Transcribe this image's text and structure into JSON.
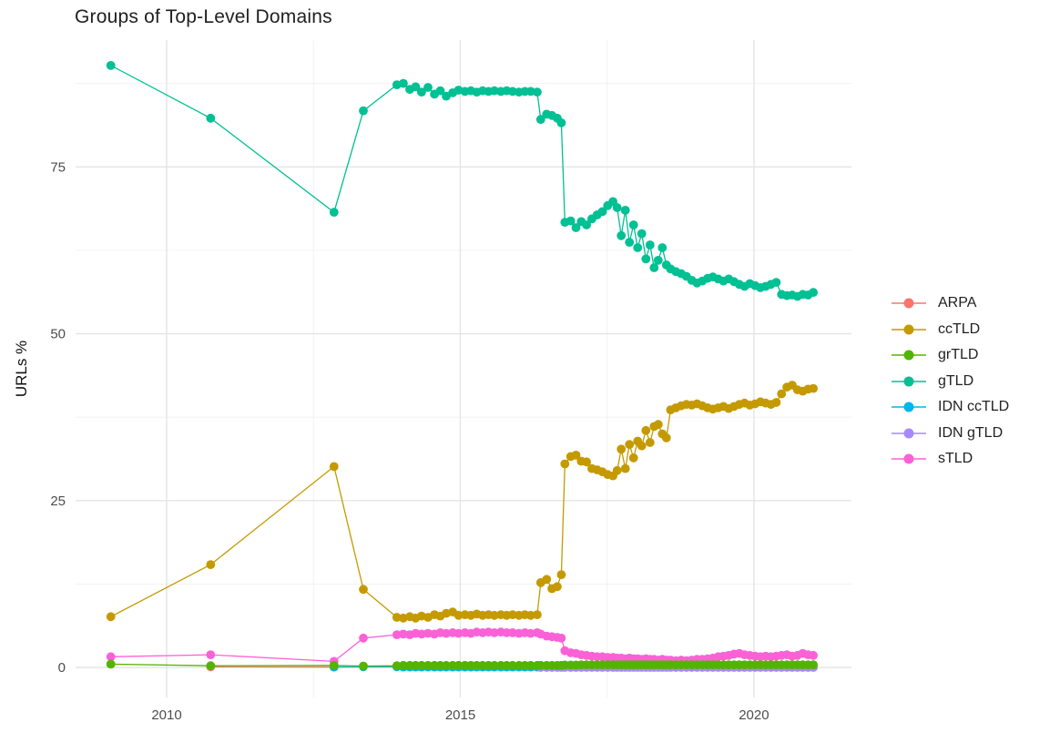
{
  "title": "Groups of Top-Level Domains",
  "y_axis": {
    "label": "URLs %",
    "tick_labels": [
      "0",
      "25",
      "50",
      "75"
    ],
    "tick_values": [
      0,
      25,
      50,
      75
    ],
    "minor_values": [
      12.5,
      37.5,
      62.5,
      87.5
    ]
  },
  "x_axis": {
    "label": "",
    "tick_labels": [
      "2010",
      "2015",
      "2020"
    ],
    "tick_values": [
      2010,
      2015,
      2020
    ],
    "minor_values": [
      2012.5,
      2017.5
    ]
  },
  "legend": {
    "position": "right",
    "items": [
      "ARPA",
      "ccTLD",
      "grTLD",
      "gTLD",
      "IDN ccTLD",
      "IDN gTLD",
      "sTLD"
    ]
  },
  "style_colors": {
    "grid_major": "#e4e4e4",
    "grid_minor": "#f0f0f0",
    "tick_text": "#4d4d4d",
    "title_text": "#1f1f1f",
    "background": "#ffffff"
  },
  "chart_data": {
    "type": "line",
    "title": "Groups of Top-Level Domains",
    "xlabel": "",
    "ylabel": "URLs %",
    "xlim": [
      2008.45,
      2021.66
    ],
    "ylim": [
      -4.5,
      94.0
    ],
    "grid": true,
    "legend_position": "right",
    "draw_order": [
      "ARPA",
      "IDN ccTLD",
      "IDN gTLD",
      "ccTLD",
      "sTLD",
      "gTLD",
      "grTLD"
    ],
    "x": [
      2009.05,
      2010.75,
      2012.85,
      2013.35,
      2013.92,
      2014.03,
      2014.14,
      2014.24,
      2014.34,
      2014.45,
      2014.56,
      2014.66,
      2014.76,
      2014.87,
      2014.97,
      2015.08,
      2015.18,
      2015.28,
      2015.38,
      2015.48,
      2015.58,
      2015.69,
      2015.79,
      2015.89,
      2016.0,
      2016.1,
      2016.2,
      2016.31,
      2016.37,
      2016.47,
      2016.56,
      2016.65,
      2016.72,
      2016.78,
      2016.88,
      2016.97,
      2017.06,
      2017.15,
      2017.24,
      2017.33,
      2017.42,
      2017.51,
      2017.6,
      2017.67,
      2017.74,
      2017.81,
      2017.88,
      2017.95,
      2018.02,
      2018.09,
      2018.16,
      2018.23,
      2018.3,
      2018.37,
      2018.44,
      2018.51,
      2018.58,
      2018.67,
      2018.76,
      2018.85,
      2018.94,
      2019.03,
      2019.12,
      2019.21,
      2019.3,
      2019.39,
      2019.48,
      2019.57,
      2019.66,
      2019.75,
      2019.84,
      2019.93,
      2020.02,
      2020.11,
      2020.2,
      2020.29,
      2020.38,
      2020.47,
      2020.56,
      2020.65,
      2020.74,
      2020.83,
      2020.92,
      2021.01
    ],
    "series": [
      {
        "name": "ARPA",
        "color": "#F8766D",
        "values": [
          null,
          0.1,
          0.05,
          null,
          null,
          null,
          null,
          null,
          null,
          null,
          null,
          null,
          null,
          null,
          null,
          null,
          null,
          null,
          null,
          null,
          null,
          null,
          null,
          null,
          null,
          null,
          null,
          null,
          null,
          null,
          null,
          null,
          null,
          null,
          null,
          null,
          null,
          null,
          null,
          null,
          null,
          null,
          null,
          null,
          null,
          null,
          null,
          null,
          null,
          null,
          null,
          null,
          null,
          null,
          null,
          null,
          null,
          null,
          null,
          null,
          null,
          null,
          null,
          null,
          null,
          null,
          null,
          null,
          null,
          null,
          null,
          null,
          null,
          null,
          null,
          null,
          null,
          null,
          null,
          null,
          null,
          null,
          null,
          null
        ]
      },
      {
        "name": "ccTLD",
        "color": "#C49A00",
        "values": [
          7.6,
          15.4,
          30.1,
          11.7,
          7.5,
          7.4,
          7.6,
          7.4,
          7.7,
          7.5,
          7.9,
          7.7,
          8.1,
          8.3,
          7.8,
          7.9,
          7.8,
          8.0,
          7.8,
          7.9,
          7.8,
          7.9,
          7.8,
          7.9,
          7.8,
          7.9,
          7.8,
          7.9,
          12.7,
          13.2,
          11.8,
          12.1,
          13.9,
          30.5,
          31.6,
          31.8,
          30.9,
          30.8,
          29.8,
          29.6,
          29.3,
          28.9,
          28.7,
          29.5,
          32.7,
          29.8,
          33.4,
          31.4,
          33.9,
          33.2,
          35.5,
          33.7,
          36.1,
          36.4,
          35.0,
          34.4,
          38.6,
          38.9,
          39.2,
          39.4,
          39.3,
          39.5,
          39.2,
          38.9,
          38.7,
          38.9,
          39.1,
          38.8,
          39.1,
          39.4,
          39.6,
          39.3,
          39.5,
          39.8,
          39.6,
          39.4,
          39.7,
          41.0,
          42.0,
          42.3,
          41.6,
          41.4,
          41.7,
          41.8
        ]
      },
      {
        "name": "grTLD",
        "color": "#53B400",
        "values": [
          0.5,
          0.25,
          0.3,
          0.2,
          0.25,
          0.3,
          0.3,
          0.3,
          0.3,
          0.3,
          0.3,
          0.3,
          0.3,
          0.3,
          0.3,
          0.3,
          0.3,
          0.3,
          0.3,
          0.3,
          0.3,
          0.3,
          0.3,
          0.3,
          0.3,
          0.3,
          0.3,
          0.3,
          0.3,
          0.3,
          0.3,
          0.3,
          0.3,
          0.35,
          0.35,
          0.35,
          0.4,
          0.4,
          0.4,
          0.4,
          0.4,
          0.4,
          0.4,
          0.4,
          0.4,
          0.4,
          0.4,
          0.4,
          0.4,
          0.4,
          0.4,
          0.4,
          0.4,
          0.4,
          0.4,
          0.4,
          0.4,
          0.4,
          0.4,
          0.4,
          0.4,
          0.4,
          0.4,
          0.4,
          0.4,
          0.4,
          0.4,
          0.4,
          0.4,
          0.4,
          0.4,
          0.4,
          0.4,
          0.4,
          0.4,
          0.4,
          0.4,
          0.4,
          0.4,
          0.4,
          0.4,
          0.4,
          0.4,
          0.4
        ]
      },
      {
        "name": "gTLD",
        "color": "#00C094",
        "values": [
          90.2,
          82.3,
          68.2,
          83.4,
          87.3,
          87.5,
          86.6,
          87.0,
          86.2,
          86.9,
          85.9,
          86.4,
          85.6,
          86.1,
          86.5,
          86.3,
          86.4,
          86.2,
          86.4,
          86.3,
          86.4,
          86.3,
          86.4,
          86.3,
          86.2,
          86.3,
          86.3,
          86.2,
          82.1,
          82.9,
          82.7,
          82.3,
          81.6,
          66.7,
          66.9,
          65.9,
          66.8,
          66.3,
          67.2,
          67.8,
          68.3,
          69.2,
          69.8,
          68.9,
          64.7,
          68.5,
          63.7,
          66.3,
          62.9,
          65.0,
          61.2,
          63.3,
          59.9,
          61.0,
          62.9,
          60.3,
          59.7,
          59.3,
          59.0,
          58.6,
          58.0,
          57.6,
          57.9,
          58.3,
          58.5,
          58.2,
          57.9,
          58.2,
          57.8,
          57.4,
          57.1,
          57.5,
          57.2,
          56.9,
          57.1,
          57.4,
          57.7,
          55.9,
          55.7,
          55.8,
          55.6,
          55.9,
          55.8,
          56.2
        ]
      },
      {
        "name": "IDN ccTLD",
        "color": "#00B6EB",
        "values": [
          null,
          null,
          0.05,
          0.1,
          0.1,
          0.05,
          0.05,
          0.05,
          0.05,
          0.05,
          0.05,
          0.05,
          0.05,
          0.05,
          0.05,
          0.05,
          0.05,
          0.05,
          0.05,
          0.05,
          0.05,
          0.05,
          0.05,
          0.05,
          0.05,
          0.05,
          0.05,
          0.05,
          0.05,
          0.05,
          0.05,
          0.05,
          0.05,
          0.05,
          0.05,
          0.05,
          0.05,
          0.05,
          0.05,
          0.05,
          0.05,
          0.05,
          0.05,
          0.05,
          0.05,
          0.05,
          0.05,
          0.05,
          0.05,
          0.05,
          0.05,
          0.05,
          0.05,
          0.05,
          0.05,
          0.05,
          0.05,
          0.05,
          0.05,
          0.05,
          0.05,
          0.05,
          0.05,
          0.05,
          0.05,
          0.05,
          0.05,
          0.05,
          0.05,
          0.05,
          0.05,
          0.05,
          0.05,
          0.05,
          0.05,
          0.05,
          0.05,
          0.05,
          0.05,
          0.05,
          0.05,
          0.05,
          0.05,
          0.05
        ]
      },
      {
        "name": "IDN gTLD",
        "color": "#A58AFF",
        "values": [
          null,
          null,
          null,
          null,
          null,
          null,
          null,
          null,
          null,
          null,
          null,
          null,
          null,
          null,
          null,
          null,
          null,
          null,
          null,
          null,
          null,
          null,
          null,
          null,
          null,
          null,
          null,
          null,
          0.0,
          0.0,
          0.0,
          0.0,
          0.0,
          0.0,
          0.0,
          0.0,
          0.0,
          0.0,
          0.0,
          0.0,
          0.0,
          0.0,
          0.0,
          0.0,
          0.0,
          0.0,
          0.0,
          0.0,
          0.0,
          0.0,
          0.0,
          0.0,
          0.0,
          0.0,
          0.0,
          0.0,
          0.0,
          0.0,
          0.0,
          0.0,
          0.0,
          0.0,
          0.0,
          0.0,
          0.0,
          0.0,
          0.0,
          0.0,
          0.0,
          0.0,
          0.0,
          0.0,
          0.0,
          0.0,
          0.0,
          0.0,
          0.0,
          0.0,
          0.0,
          0.0,
          0.0,
          0.0,
          0.0,
          0.0
        ]
      },
      {
        "name": "sTLD",
        "color": "#FB61D7",
        "values": [
          1.6,
          1.9,
          0.9,
          4.4,
          4.9,
          5.0,
          4.9,
          5.1,
          5.0,
          5.1,
          5.0,
          5.2,
          5.1,
          5.2,
          5.1,
          5.2,
          5.1,
          5.3,
          5.2,
          5.3,
          5.2,
          5.3,
          5.2,
          5.2,
          5.1,
          5.2,
          5.1,
          5.2,
          5.0,
          4.7,
          4.6,
          4.5,
          4.4,
          2.5,
          2.2,
          2.1,
          1.9,
          1.8,
          1.7,
          1.6,
          1.6,
          1.5,
          1.5,
          1.4,
          1.4,
          1.3,
          1.4,
          1.3,
          1.3,
          1.2,
          1.3,
          1.2,
          1.2,
          1.1,
          1.2,
          1.1,
          1.1,
          1.0,
          1.1,
          1.0,
          1.1,
          1.2,
          1.2,
          1.3,
          1.4,
          1.6,
          1.7,
          1.8,
          2.0,
          2.1,
          1.9,
          1.8,
          1.7,
          1.6,
          1.7,
          1.6,
          1.7,
          1.8,
          1.9,
          1.7,
          1.8,
          2.1,
          1.9,
          1.8
        ]
      }
    ]
  }
}
